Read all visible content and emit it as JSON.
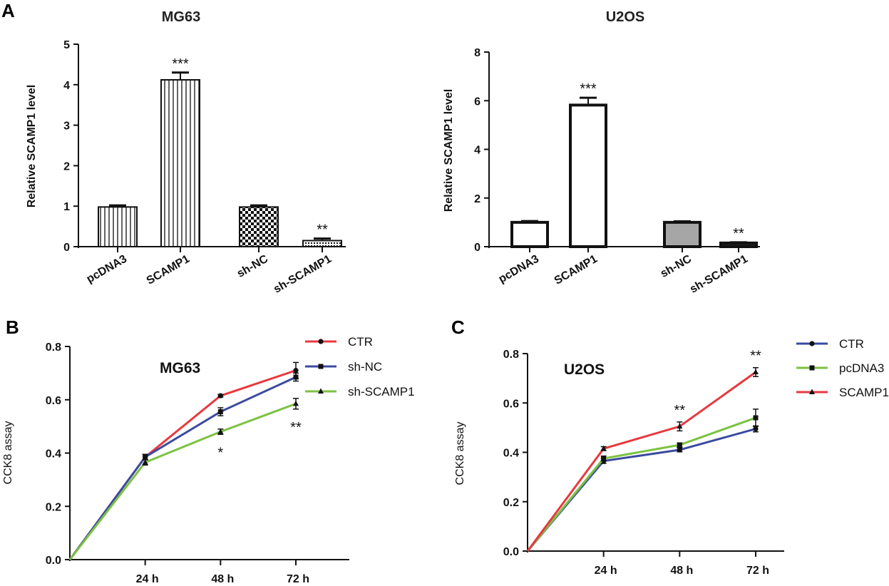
{
  "panels": {
    "A": "A",
    "B": "B",
    "C": "C"
  },
  "chart_data": [
    {
      "id": "A1",
      "type": "bar",
      "title": "MG63",
      "ylabel": "Relative SCAMP1 level",
      "ylim": [
        0,
        5
      ],
      "yticks": [
        "0",
        "1",
        "2",
        "3",
        "4",
        "5"
      ],
      "categories": [
        "pcDNA3",
        "SCAMP1",
        "sh-NC",
        "sh-SCAMP1"
      ],
      "values": [
        0.98,
        4.12,
        0.98,
        0.15
      ],
      "errors": [
        0.04,
        0.18,
        0.04,
        0.05
      ],
      "significance": [
        "",
        "***",
        "",
        "**"
      ],
      "fills": [
        "vertical-stripes",
        "vertical-stripes",
        "checkerboard",
        "dots"
      ]
    },
    {
      "id": "A2",
      "type": "bar",
      "title": "U2OS",
      "ylabel": "Relative SCAMP1 level",
      "ylim": [
        0,
        8
      ],
      "yticks": [
        "0",
        "2",
        "4",
        "6",
        "8"
      ],
      "categories": [
        "pcDNA3",
        "SCAMP1",
        "sh-NC",
        "sh-SCAMP1"
      ],
      "values": [
        1.0,
        5.82,
        1.0,
        0.15
      ],
      "errors": [
        0.05,
        0.3,
        0.04,
        0.03
      ],
      "significance": [
        "",
        "***",
        "",
        "**"
      ],
      "fills": [
        "#ffffff",
        "#ffffff",
        "#a6a6a6",
        "#222222"
      ]
    },
    {
      "id": "B",
      "type": "line",
      "title": "MG63",
      "ylabel": "CCK8 assay",
      "ylim": [
        0,
        0.8
      ],
      "yticks": [
        "0.0",
        "0.2",
        "0.4",
        "0.6",
        "0.8"
      ],
      "x": [
        0,
        24,
        48,
        72
      ],
      "xticklabels": [
        "24 h",
        "48 h",
        "72 h"
      ],
      "series": [
        {
          "name": "CTR",
          "color": "#e8393f",
          "marker": "circle",
          "values": [
            0,
            0.385,
            0.615,
            0.71
          ],
          "errors": [
            0,
            0.01,
            0.005,
            0.03
          ]
        },
        {
          "name": "sh-NC",
          "color": "#3b4ba0",
          "marker": "square",
          "values": [
            0,
            0.385,
            0.555,
            0.685
          ],
          "errors": [
            0,
            0.01,
            0.015,
            0.015
          ]
        },
        {
          "name": "sh-SCAMP1",
          "color": "#7cc242",
          "marker": "triangle",
          "values": [
            0,
            0.365,
            0.48,
            0.585
          ],
          "errors": [
            0,
            0.01,
            0.01,
            0.02
          ]
        }
      ],
      "annotations": [
        {
          "x": 48,
          "text": "*"
        },
        {
          "x": 72,
          "text": "**"
        }
      ]
    },
    {
      "id": "C",
      "type": "line",
      "title": "U2OS",
      "ylabel": "CCK8 assay",
      "ylim": [
        0,
        0.8
      ],
      "yticks": [
        "0.0",
        "0.2",
        "0.4",
        "0.6",
        "0.8"
      ],
      "x": [
        0,
        24,
        48,
        72
      ],
      "xticklabels": [
        "24 h",
        "48 h",
        "72 h"
      ],
      "series": [
        {
          "name": "CTR",
          "color": "#3b4ba0",
          "marker": "circle",
          "values": [
            0,
            0.365,
            0.41,
            0.495
          ],
          "errors": [
            0,
            0.01,
            0.008,
            0.012
          ]
        },
        {
          "name": "pcDNA3",
          "color": "#7cc242",
          "marker": "square",
          "values": [
            0,
            0.375,
            0.43,
            0.54
          ],
          "errors": [
            0,
            0.01,
            0.008,
            0.035
          ]
        },
        {
          "name": "SCAMP1",
          "color": "#e8393f",
          "marker": "triangle",
          "values": [
            0,
            0.415,
            0.505,
            0.725
          ],
          "errors": [
            0,
            0.008,
            0.018,
            0.018
          ]
        }
      ],
      "annotations": [
        {
          "x": 48,
          "text": "**"
        },
        {
          "x": 72,
          "text": "**"
        }
      ]
    }
  ]
}
